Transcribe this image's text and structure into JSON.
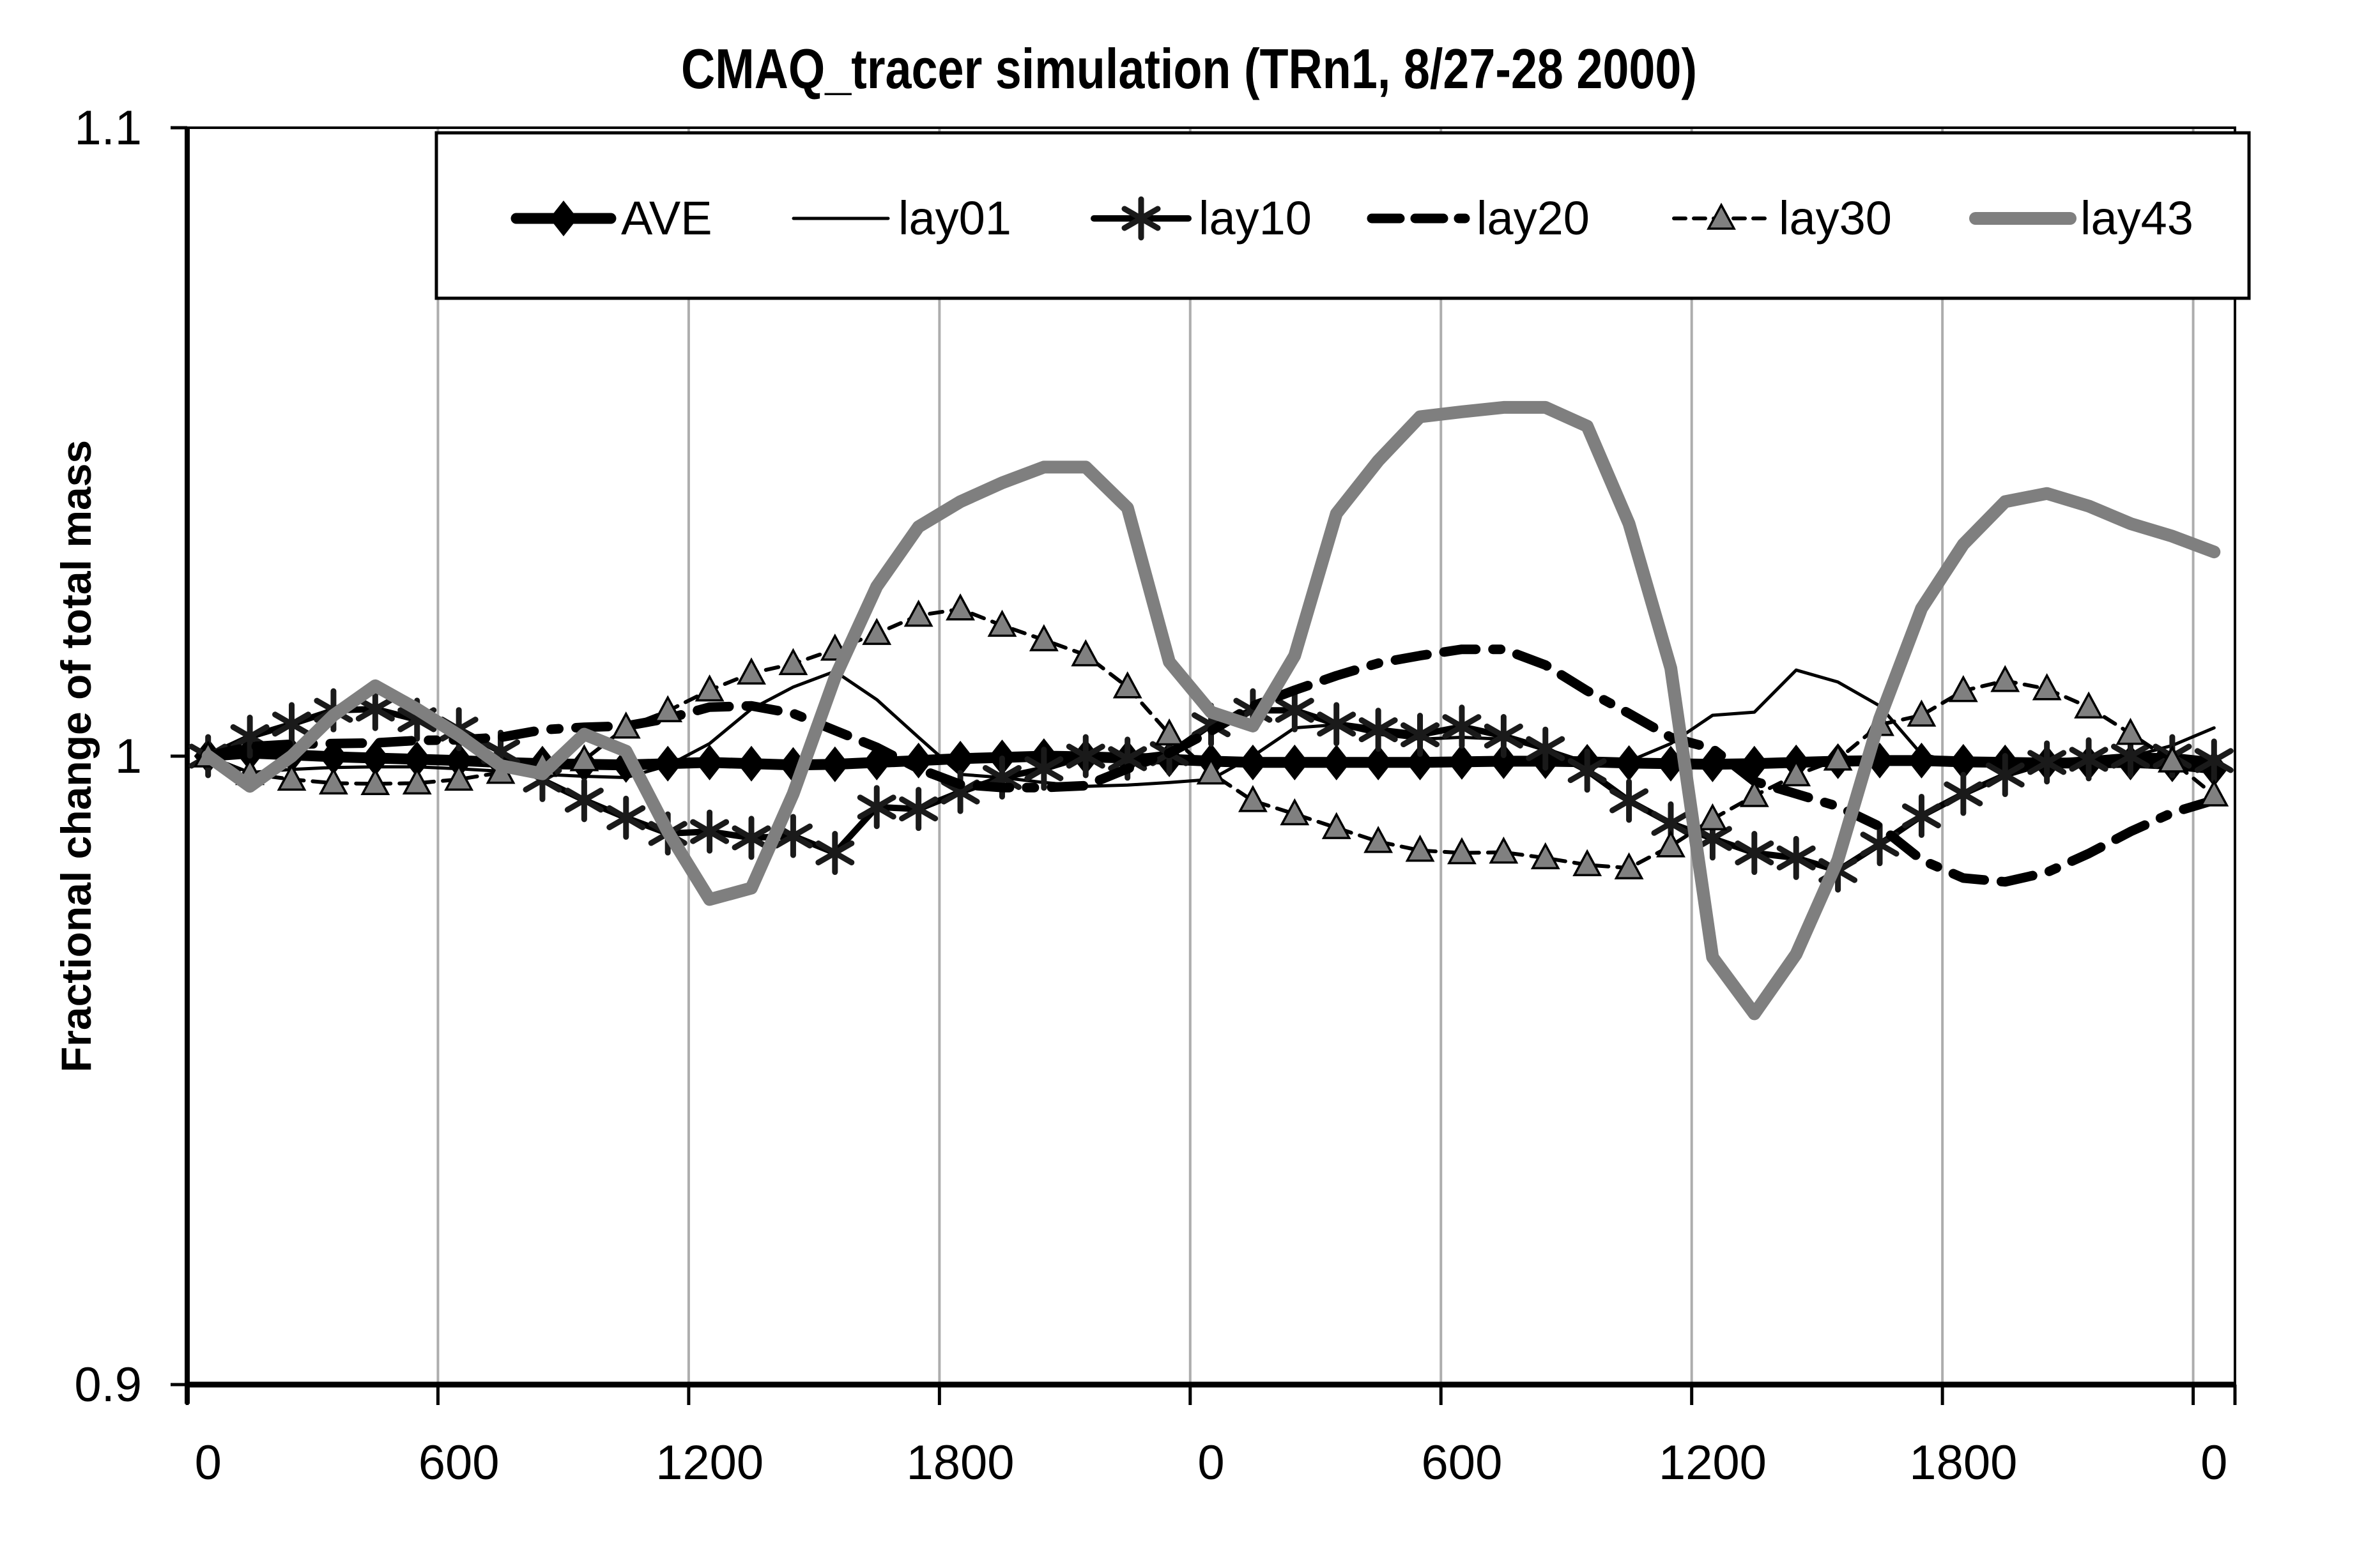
{
  "page": {
    "background": "#ffffff"
  },
  "chart_data": {
    "type": "line",
    "title": "CMAQ_tracer simulation (TRn1, 8/27-28 2000)",
    "xlabel": "",
    "ylabel": "Fractional change of total mass",
    "ylim": [
      0.9,
      1.1
    ],
    "ytick_values": [
      1.1,
      1.0,
      0.9
    ],
    "ytick_labels": [
      "1.1",
      "1",
      "0.9"
    ],
    "x_hours": [
      0,
      1,
      2,
      3,
      4,
      5,
      6,
      7,
      8,
      9,
      10,
      11,
      12,
      13,
      14,
      15,
      16,
      17,
      18,
      19,
      20,
      21,
      22,
      23,
      24,
      25,
      26,
      27,
      28,
      29,
      30,
      31,
      32,
      33,
      34,
      35,
      36,
      37,
      38,
      39,
      40,
      41,
      42,
      43,
      44,
      45,
      46,
      47,
      48
    ],
    "xtick_hours": [
      0,
      6,
      12,
      18,
      24,
      30,
      36,
      42,
      48
    ],
    "xtick_labels": [
      "0",
      "600",
      "1200",
      "1800",
      "0",
      "600",
      "1200",
      "1800",
      "0"
    ],
    "grid": "vertical gridlines every 6 hours",
    "legend_position": "top",
    "colors": {
      "black": "#000000",
      "gray": "#7f7f7f",
      "gridline": "#adadad"
    },
    "series": [
      {
        "name": "AVE",
        "color": "#000000",
        "style": "solid-thick",
        "marker": "diamond",
        "values": [
          1.0,
          1.0005,
          1.0002,
          0.9999,
          0.9997,
          0.9995,
          0.9993,
          0.999,
          0.9988,
          0.9987,
          0.9986,
          0.9988,
          0.999,
          0.9988,
          0.9986,
          0.9987,
          0.999,
          0.9993,
          0.9996,
          0.9998,
          1.0,
          0.9999,
          0.9997,
          0.9995,
          0.9992,
          0.999,
          0.999,
          0.999,
          0.999,
          0.999,
          0.9991,
          0.9992,
          0.9992,
          0.9991,
          0.9989,
          0.9988,
          0.9987,
          0.9988,
          0.999,
          0.9992,
          0.9993,
          0.9993,
          0.9991,
          0.999,
          0.9989,
          0.9989,
          0.999,
          0.9987,
          0.998
        ]
      },
      {
        "name": "lay01",
        "color": "#000000",
        "style": "solid-thin",
        "marker": "none",
        "values": [
          1.0,
          0.9974,
          0.9979,
          0.9982,
          0.9983,
          0.9983,
          0.998,
          0.9976,
          0.9971,
          0.9968,
          0.9966,
          0.9985,
          1.002,
          1.0075,
          1.011,
          1.0135,
          1.009,
          1.003,
          0.9971,
          0.9966,
          0.9958,
          0.9952,
          0.9954,
          0.9958,
          0.9963,
          1.0,
          1.0045,
          1.005,
          1.0035,
          1.0027,
          1.003,
          1.0027,
          1.0012,
          0.999,
          0.9992,
          1.002,
          1.0065,
          1.007,
          1.0137,
          1.0118,
          1.008,
          1.0003,
          0.9988,
          0.9985,
          0.9986,
          0.9992,
          0.9999,
          1.0017,
          1.0045
        ]
      },
      {
        "name": "lay10",
        "color": "#000000",
        "style": "solid-medium",
        "marker": "asterisk",
        "values": [
          1.0,
          1.0031,
          1.0051,
          1.0073,
          1.0075,
          1.0058,
          1.0043,
          1.0007,
          0.9962,
          0.993,
          0.9902,
          0.9877,
          0.988,
          0.987,
          0.9873,
          0.9846,
          0.9919,
          0.9916,
          0.9943,
          0.9966,
          0.998,
          1.0,
          0.9996,
          1.0004,
          1.005,
          1.0073,
          1.0073,
          1.0051,
          1.0042,
          1.0034,
          1.0047,
          1.0032,
          1.0012,
          0.9977,
          0.9929,
          0.9893,
          0.9869,
          0.9846,
          0.9838,
          0.9818,
          0.986,
          0.9905,
          0.994,
          0.997,
          0.999,
          0.9995,
          1.0,
          1.0,
          0.9993
        ]
      },
      {
        "name": "lay20",
        "color": "#000000",
        "style": "dashed-thick",
        "marker": "none",
        "values": [
          1.0,
          1.0015,
          1.0019,
          1.002,
          1.0021,
          1.0025,
          1.0026,
          1.003,
          1.0042,
          1.0046,
          1.0048,
          1.006,
          1.0078,
          1.008,
          1.0068,
          1.0041,
          1.0014,
          0.998,
          0.9955,
          0.995,
          0.995,
          0.9953,
          0.998,
          1.0005,
          1.004,
          1.008,
          1.0105,
          1.0128,
          1.0148,
          1.016,
          1.017,
          1.017,
          1.0145,
          1.0104,
          1.0068,
          1.003,
          1.0012,
          0.996,
          0.994,
          0.992,
          0.9888,
          0.9835,
          0.9806,
          0.98,
          0.9815,
          0.9845,
          0.988,
          0.991,
          0.993
        ]
      },
      {
        "name": "lay30",
        "color": "#000000",
        "style": "dashed-thin",
        "marker": "triangle",
        "values": [
          1.0,
          0.9972,
          0.9963,
          0.9957,
          0.9956,
          0.9957,
          0.9963,
          0.9974,
          0.9985,
          0.9994,
          1.0046,
          1.0072,
          1.0105,
          1.0132,
          1.0147,
          1.017,
          1.0195,
          1.0224,
          1.0234,
          1.0208,
          1.0185,
          1.0161,
          1.011,
          1.0035,
          0.9973,
          0.9929,
          0.9908,
          0.9886,
          0.9864,
          0.985,
          0.9846,
          0.9847,
          0.9838,
          0.9827,
          0.9822,
          0.9857,
          0.99,
          0.9937,
          0.997,
          0.9995,
          1.005,
          1.0065,
          1.0104,
          1.012,
          1.0107,
          1.0078,
          1.0036,
          0.9992,
          0.9938
        ]
      },
      {
        "name": "lay43",
        "color": "#7f7f7f",
        "style": "solid-heavy",
        "marker": "none",
        "values": [
          1.0,
          0.9952,
          1.0,
          1.0065,
          1.0112,
          1.0075,
          1.0033,
          0.9985,
          0.9972,
          1.0035,
          1.0008,
          0.988,
          0.9772,
          0.979,
          0.994,
          1.0125,
          1.027,
          1.0365,
          1.0405,
          1.0435,
          1.046,
          1.046,
          1.0395,
          1.015,
          1.007,
          1.0048,
          1.016,
          1.0386,
          1.047,
          1.054,
          1.0548,
          1.0555,
          1.0555,
          1.0525,
          1.037,
          1.014,
          0.968,
          0.959,
          0.9685,
          0.9835,
          1.006,
          1.0235,
          1.0337,
          1.0405,
          1.0418,
          1.0398,
          1.037,
          1.035,
          1.0325
        ]
      }
    ]
  },
  "legend": {
    "items": [
      {
        "label": "AVE"
      },
      {
        "label": "lay01"
      },
      {
        "label": "lay10"
      },
      {
        "label": "lay20"
      },
      {
        "label": "lay30"
      },
      {
        "label": "lay43"
      }
    ]
  }
}
